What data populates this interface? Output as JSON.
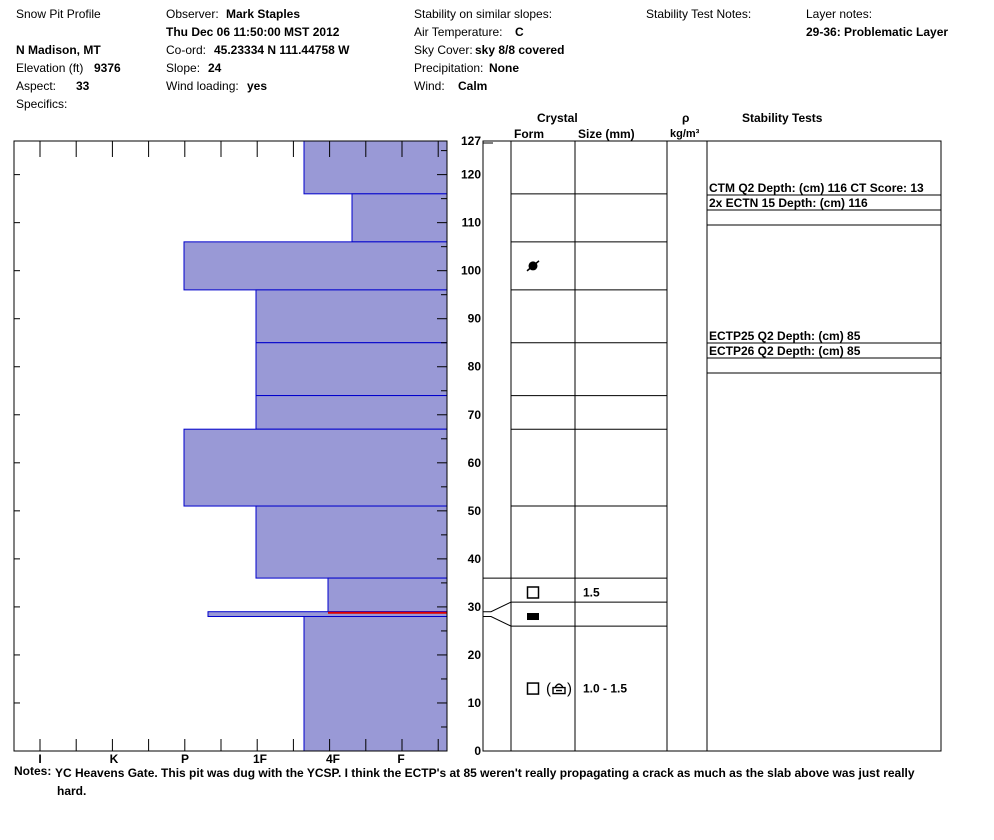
{
  "header": {
    "title": "Snow Pit Profile",
    "location": "N Madison, MT",
    "elevation_label": "Elevation (ft)",
    "elevation": "9376",
    "aspect_label": "Aspect:",
    "aspect": "33",
    "specifics_label": "Specifics:",
    "observer_label": "Observer:",
    "observer": "Mark Staples",
    "datetime": "Thu Dec 06 11:50:00 MST 2012",
    "coord_label": "Co-ord:",
    "coord": "45.23334 N 111.44758 W",
    "slope_label": "Slope:",
    "slope": "24",
    "wind_loading_label": "Wind loading:",
    "wind_loading": "yes",
    "stability_similar_label": "Stability on similar slopes:",
    "air_temp_label": "Air Temperature:",
    "air_temp": "C",
    "sky_label": "Sky Cover:",
    "sky": "sky 8/8 covered",
    "precip_label": "Precipitation:",
    "precip": "None",
    "wind_label": "Wind:",
    "wind": "Calm",
    "stability_notes_label": "Stability Test Notes:",
    "layer_notes_label": "Layer notes:",
    "layer_notes": "29-36: Problematic Layer"
  },
  "columns": {
    "crystal": "Crystal",
    "form": "Form",
    "size": "Size (mm)",
    "rho": "ρ",
    "rho_unit": "kg/m³",
    "stability": "Stability Tests"
  },
  "colors": {
    "hardness_fill": "#9999d6",
    "hardness_stroke": "#0000cc",
    "weak_layer": "#dd0000"
  },
  "chart_data": {
    "type": "bar",
    "description_axis": "depth (cm)",
    "ylim": [
      0,
      127
    ],
    "y_ticks": [
      0,
      10,
      20,
      30,
      40,
      50,
      60,
      70,
      80,
      90,
      100,
      110,
      120,
      127
    ],
    "hardness_scale": [
      "I",
      "K",
      "P",
      "1F",
      "4F",
      "F"
    ],
    "hardness_layers": [
      {
        "bottom": 116,
        "top": 127,
        "hardness": "4F"
      },
      {
        "bottom": 106,
        "top": 116,
        "hardness": "4F-"
      },
      {
        "bottom": 96,
        "top": 106,
        "hardness": "P"
      },
      {
        "bottom": 85,
        "top": 96,
        "hardness": "1F"
      },
      {
        "bottom": 74,
        "top": 85,
        "hardness": "1F"
      },
      {
        "bottom": 67,
        "top": 74,
        "hardness": "1F"
      },
      {
        "bottom": 51,
        "top": 67,
        "hardness": "P"
      },
      {
        "bottom": 36,
        "top": 51,
        "hardness": "1F"
      },
      {
        "bottom": 29,
        "top": 36,
        "hardness": "4F+"
      },
      {
        "bottom": 28,
        "top": 29,
        "hardness": "P+"
      },
      {
        "bottom": 0,
        "top": 28,
        "hardness": "4F"
      }
    ],
    "weak_layer_depth": 29,
    "crystal_layer_boundaries": [
      116,
      106,
      96,
      85,
      74,
      67,
      51,
      36,
      31,
      26
    ],
    "crystals": [
      {
        "depth": 101,
        "form": "rounded"
      },
      {
        "depth": 33,
        "form": "faceted",
        "size": "1.5"
      },
      {
        "depth": 28,
        "form": "crust"
      },
      {
        "depth": 13,
        "form": "faceted (depth hoar)",
        "size": "1.0 - 1.5"
      }
    ],
    "stability_tests": [
      {
        "text": "CTM Q2 Depth: (cm) 116 CT Score: 13",
        "depth": 116
      },
      {
        "text": "2x ECTN 15   Depth: (cm) 116",
        "depth": 116
      },
      {
        "text": "ECTP25 Q2 Depth: (cm) 85",
        "depth": 85
      },
      {
        "text": "ECTP26 Q2 Depth: (cm) 85",
        "depth": 85
      }
    ]
  },
  "notes": {
    "label": "Notes:",
    "text": "YC Heavens Gate.  This pit was dug with the YCSP.  I think the ECTP's at 85 weren't really propagating a crack as much as the slab above was just really hard."
  }
}
